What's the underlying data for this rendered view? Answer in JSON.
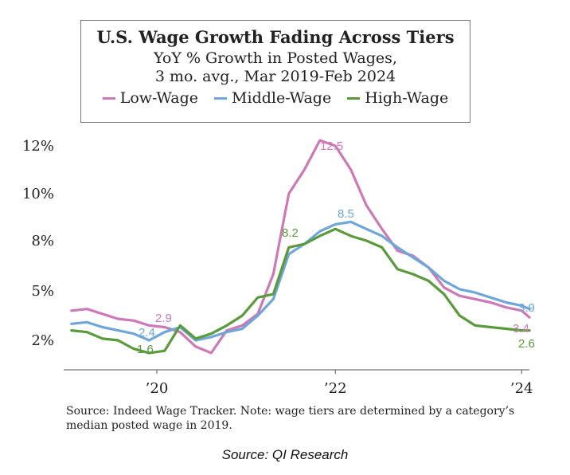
{
  "chart_data": {
    "type": "line",
    "title": "U.S. Wage Growth Fading Across Tiers",
    "subtitle_lines": [
      "YoY % Growth in Posted Wages,",
      "3 mo. avg., Mar 2019-Feb 2024"
    ],
    "x": [
      "2019-03",
      "2019-05",
      "2019-07",
      "2019-09",
      "2019-11",
      "2020-01",
      "2020-03",
      "2020-05",
      "2020-07",
      "2020-09",
      "2020-11",
      "2021-01",
      "2021-03",
      "2021-05",
      "2021-07",
      "2021-09",
      "2021-11",
      "2022-01",
      "2022-03",
      "2022-05",
      "2022-07",
      "2022-09",
      "2022-11",
      "2023-01",
      "2023-03",
      "2023-05",
      "2023-07",
      "2023-09",
      "2023-11",
      "2024-01",
      "2024-02"
    ],
    "x_ticks": [
      "’20",
      "’22",
      "’24"
    ],
    "y_ticks": [
      "2%",
      "5%",
      "8%",
      "10%",
      "12%"
    ],
    "ylim": [
      0.6,
      13
    ],
    "series": [
      {
        "name": "Low-Wage",
        "color": "#cc79b6",
        "values": [
          3.8,
          3.9,
          3.6,
          3.3,
          3.2,
          2.9,
          2.8,
          2.5,
          1.7,
          1.4,
          2.6,
          2.9,
          3.6,
          6.0,
          10.0,
          11.0,
          12.3,
          12.0,
          11.0,
          9.5,
          8.5,
          7.4,
          7.1,
          6.4,
          5.2,
          4.7,
          4.5,
          4.3,
          4.0,
          3.8,
          3.4
        ]
      },
      {
        "name": "Middle-Wage",
        "color": "#6ea6d8",
        "values": [
          3.0,
          3.1,
          2.8,
          2.6,
          2.4,
          2.0,
          2.5,
          2.8,
          2.0,
          2.2,
          2.5,
          2.7,
          3.5,
          4.5,
          7.2,
          7.8,
          8.4,
          8.7,
          8.8,
          8.5,
          8.2,
          7.6,
          7.0,
          6.4,
          5.6,
          5.1,
          4.9,
          4.6,
          4.3,
          4.1,
          3.9
        ]
      },
      {
        "name": "High-Wage",
        "color": "#5a9a3c",
        "values": [
          2.6,
          2.5,
          2.1,
          2.0,
          1.6,
          1.4,
          1.5,
          2.9,
          2.1,
          2.4,
          2.9,
          3.5,
          4.6,
          4.8,
          7.6,
          7.8,
          8.2,
          8.5,
          8.2,
          8.0,
          7.6,
          6.3,
          6.0,
          5.6,
          4.8,
          3.5,
          2.9,
          2.8,
          2.7,
          2.6,
          2.6
        ]
      }
    ],
    "data_labels": [
      {
        "text": "12.5",
        "series": "Low-Wage"
      },
      {
        "text": "2.9",
        "series": "Low-Wage"
      },
      {
        "text": "3.4",
        "series": "Low-Wage"
      },
      {
        "text": "8.5",
        "series": "Middle-Wage"
      },
      {
        "text": "2.4",
        "series": "Middle-Wage"
      },
      {
        "text": "3.9",
        "series": "Middle-Wage"
      },
      {
        "text": "8.2",
        "series": "High-Wage"
      },
      {
        "text": "1.6",
        "series": "High-Wage"
      },
      {
        "text": "2.6",
        "series": "High-Wage"
      }
    ],
    "legend": "top"
  },
  "footnote_lines": [
    "Source: Indeed Wage Tracker. Note: wage tiers are determined by a category’s",
    "median posted wage in 2019."
  ],
  "source_caption": "Source: QI Research"
}
